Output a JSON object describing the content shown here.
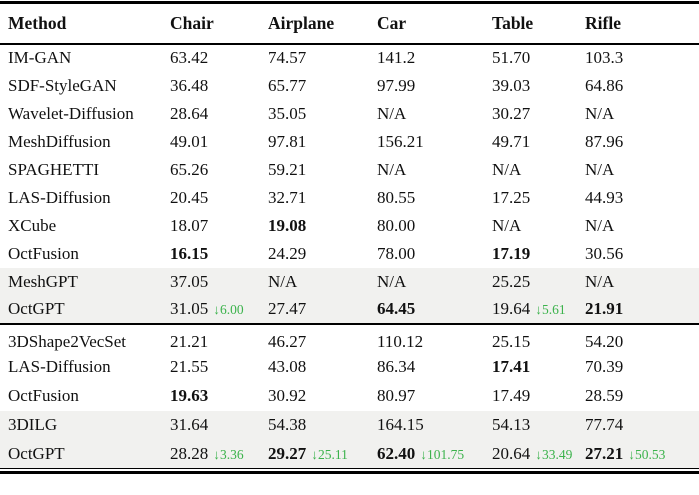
{
  "colors": {
    "highlight_bg": "#f1f1ef",
    "delta_green": "#3cb34c",
    "rule_black": "#000000",
    "text": "#111111"
  },
  "icons": {
    "down_arrow": "↓"
  },
  "table": {
    "columns": [
      "Method",
      "Chair",
      "Airplane",
      "Car",
      "Table",
      "Rifle"
    ],
    "sections": [
      {
        "rows": [
          {
            "method": "IM-GAN",
            "highlight": false,
            "cells": [
              {
                "v": "63.42"
              },
              {
                "v": "74.57"
              },
              {
                "v": "141.2"
              },
              {
                "v": "51.70"
              },
              {
                "v": "103.3"
              }
            ]
          },
          {
            "method": "SDF-StyleGAN",
            "highlight": false,
            "cells": [
              {
                "v": "36.48"
              },
              {
                "v": "65.77"
              },
              {
                "v": "97.99"
              },
              {
                "v": "39.03"
              },
              {
                "v": "64.86"
              }
            ]
          },
          {
            "method": "Wavelet-Diffusion",
            "highlight": false,
            "cells": [
              {
                "v": "28.64"
              },
              {
                "v": "35.05"
              },
              {
                "v": "N/A"
              },
              {
                "v": "30.27"
              },
              {
                "v": "N/A"
              }
            ]
          },
          {
            "method": "MeshDiffusion",
            "highlight": false,
            "cells": [
              {
                "v": "49.01"
              },
              {
                "v": "97.81"
              },
              {
                "v": "156.21"
              },
              {
                "v": "49.71"
              },
              {
                "v": "87.96"
              }
            ]
          },
          {
            "method": "SPAGHETTI",
            "highlight": false,
            "cells": [
              {
                "v": "65.26"
              },
              {
                "v": "59.21"
              },
              {
                "v": "N/A"
              },
              {
                "v": "N/A"
              },
              {
                "v": "N/A"
              }
            ]
          },
          {
            "method": "LAS-Diffusion",
            "highlight": false,
            "cells": [
              {
                "v": "20.45"
              },
              {
                "v": "32.71"
              },
              {
                "v": "80.55"
              },
              {
                "v": "17.25"
              },
              {
                "v": "44.93"
              }
            ]
          },
          {
            "method": "XCube",
            "highlight": false,
            "cells": [
              {
                "v": "18.07"
              },
              {
                "v": "19.08",
                "bold": true
              },
              {
                "v": "80.00"
              },
              {
                "v": "N/A"
              },
              {
                "v": "N/A"
              }
            ]
          },
          {
            "method": "OctFusion",
            "highlight": false,
            "cells": [
              {
                "v": "16.15",
                "bold": true
              },
              {
                "v": "24.29"
              },
              {
                "v": "78.00"
              },
              {
                "v": "17.19",
                "bold": true
              },
              {
                "v": "30.56"
              }
            ]
          },
          {
            "method": "MeshGPT",
            "highlight": true,
            "cells": [
              {
                "v": "37.05"
              },
              {
                "v": "N/A"
              },
              {
                "v": "N/A"
              },
              {
                "v": "25.25"
              },
              {
                "v": "N/A"
              }
            ]
          },
          {
            "method": "OctGPT",
            "highlight": true,
            "cells": [
              {
                "v": "31.05",
                "delta": "6.00"
              },
              {
                "v": "27.47"
              },
              {
                "v": "64.45",
                "bold": true
              },
              {
                "v": "19.64",
                "delta": "5.61"
              },
              {
                "v": "21.91",
                "bold": true
              }
            ]
          }
        ]
      },
      {
        "rows": [
          {
            "method": "3DShape2VecSet",
            "highlight": false,
            "cells": [
              {
                "v": "21.21"
              },
              {
                "v": "46.27"
              },
              {
                "v": "110.12"
              },
              {
                "v": "25.15"
              },
              {
                "v": "54.20"
              }
            ]
          },
          {
            "method": "LAS-Diffusion",
            "highlight": false,
            "cells": [
              {
                "v": "21.55"
              },
              {
                "v": "43.08"
              },
              {
                "v": "86.34"
              },
              {
                "v": "17.41",
                "bold": true
              },
              {
                "v": "70.39"
              }
            ]
          },
          {
            "method": "OctFusion",
            "highlight": false,
            "cells": [
              {
                "v": "19.63",
                "bold": true
              },
              {
                "v": "30.92"
              },
              {
                "v": "80.97"
              },
              {
                "v": "17.49"
              },
              {
                "v": "28.59"
              }
            ]
          },
          {
            "method": "3DILG",
            "highlight": true,
            "cells": [
              {
                "v": "31.64"
              },
              {
                "v": "54.38"
              },
              {
                "v": "164.15"
              },
              {
                "v": "54.13"
              },
              {
                "v": "77.74"
              }
            ]
          },
          {
            "method": "OctGPT",
            "highlight": true,
            "cells": [
              {
                "v": "28.28",
                "delta": "3.36"
              },
              {
                "v": "29.27",
                "bold": true,
                "delta": "25.11"
              },
              {
                "v": "62.40",
                "bold": true,
                "delta": "101.75"
              },
              {
                "v": "20.64",
                "delta": "33.49"
              },
              {
                "v": "27.21",
                "bold": true,
                "delta": "50.53"
              }
            ]
          }
        ]
      }
    ]
  }
}
